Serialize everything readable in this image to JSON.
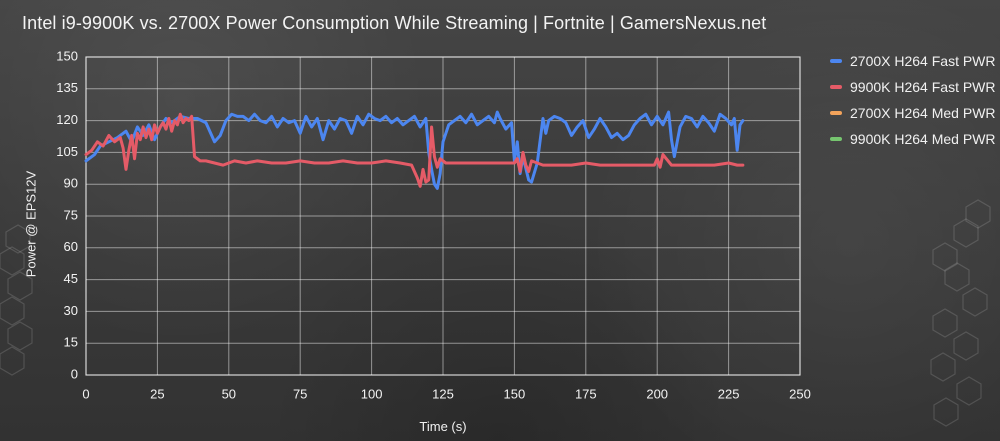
{
  "chart_data": {
    "type": "line",
    "title": "Intel i9-9900K vs. 2700X Power Consumption While Streaming | Fortnite | GamersNexus.net",
    "xlabel": "Time (s)",
    "ylabel": "Power @ EPS12V",
    "x_ticks": [
      0,
      25,
      50,
      75,
      100,
      125,
      150,
      175,
      200,
      225,
      250
    ],
    "y_ticks": [
      0,
      15,
      30,
      45,
      60,
      75,
      90,
      105,
      120,
      135,
      150
    ],
    "xlim": [
      0,
      250
    ],
    "ylim": [
      0,
      150
    ],
    "series": [
      {
        "name": "2700X H264 Fast PWR",
        "color": "#4c86f0",
        "x": [
          0,
          3,
          5,
          8,
          11,
          14,
          16,
          18,
          20,
          22,
          24,
          26,
          28,
          30,
          33,
          36,
          39,
          42,
          45,
          47,
          49,
          51,
          53,
          55,
          57,
          59,
          61,
          63,
          65,
          67,
          69,
          71,
          73,
          75,
          77,
          79,
          81,
          83,
          85,
          87,
          89,
          91,
          93,
          95,
          97,
          99,
          101,
          103,
          105,
          107,
          109,
          111,
          113,
          115,
          117,
          119,
          120,
          121,
          122,
          123,
          124,
          125,
          127,
          129,
          131,
          133,
          135,
          137,
          139,
          141,
          143,
          144,
          145,
          147,
          149,
          150,
          151,
          152,
          153,
          155,
          156,
          158,
          160,
          161,
          162,
          164,
          166,
          168,
          170,
          172,
          174,
          176,
          178,
          180,
          182,
          184,
          186,
          188,
          190,
          192,
          194,
          196,
          198,
          200,
          202,
          204,
          205,
          206,
          208,
          210,
          212,
          214,
          216,
          218,
          220,
          222,
          224,
          226,
          227,
          228,
          229,
          230
        ],
        "values": [
          101,
          104,
          108,
          110,
          112,
          115,
          110,
          117,
          113,
          118,
          111,
          117,
          121,
          119,
          122,
          121,
          121,
          119,
          110,
          113,
          120,
          123,
          122,
          122,
          120,
          123,
          120,
          119,
          122,
          117,
          121,
          119,
          120,
          114,
          122,
          117,
          121,
          111,
          120,
          116,
          121,
          120,
          114,
          122,
          118,
          123,
          121,
          120,
          122,
          119,
          121,
          118,
          120,
          122,
          117,
          121,
          105,
          97,
          90,
          88,
          95,
          110,
          118,
          120,
          122,
          119,
          123,
          118,
          120,
          122,
          119,
          124,
          121,
          116,
          119,
          101,
          110,
          95,
          103,
          92,
          91,
          100,
          121,
          114,
          120,
          122,
          121,
          119,
          113,
          117,
          120,
          112,
          116,
          121,
          117,
          112,
          114,
          111,
          113,
          118,
          121,
          123,
          118,
          122,
          118,
          124,
          111,
          103,
          117,
          122,
          121,
          117,
          122,
          119,
          115,
          123,
          121,
          118,
          121,
          106,
          118,
          120
        ]
      },
      {
        "name": "9900K H264 Fast PWR",
        "color": "#e55b67",
        "x": [
          0,
          2,
          4,
          6,
          8,
          10,
          12,
          13,
          14,
          15,
          16,
          17,
          18,
          19,
          20,
          21,
          22,
          23,
          24,
          25,
          26,
          27,
          28,
          29,
          30,
          31,
          32,
          33,
          34,
          35,
          36,
          37,
          38,
          40,
          42,
          45,
          48,
          52,
          56,
          60,
          65,
          70,
          75,
          80,
          85,
          90,
          95,
          100,
          105,
          110,
          114,
          116,
          117,
          118,
          119,
          120,
          121,
          122,
          123,
          124,
          125,
          126,
          130,
          135,
          140,
          145,
          150,
          151,
          152,
          153,
          154,
          155,
          156,
          158,
          160,
          165,
          170,
          175,
          180,
          185,
          190,
          195,
          199,
          200,
          201,
          202,
          205,
          210,
          215,
          220,
          225,
          228,
          230
        ],
        "values": [
          104,
          106,
          110,
          108,
          113,
          110,
          112,
          107,
          97,
          106,
          113,
          102,
          114,
          111,
          117,
          112,
          116,
          111,
          118,
          114,
          117,
          119,
          116,
          121,
          115,
          120,
          118,
          123,
          119,
          121,
          120,
          122,
          103,
          101,
          101,
          100,
          99,
          101,
          100,
          101,
          100,
          100,
          101,
          100,
          100,
          101,
          100,
          100,
          101,
          100,
          99,
          93,
          89,
          97,
          91,
          92,
          117,
          103,
          98,
          102,
          101,
          100,
          100,
          100,
          100,
          100,
          100,
          102,
          96,
          105,
          99,
          96,
          101,
          100,
          99,
          99,
          99,
          100,
          99,
          99,
          99,
          99,
          99,
          102,
          98,
          104,
          99,
          99,
          99,
          99,
          100,
          99,
          99
        ]
      },
      {
        "name": "2700X H264 Med PWR",
        "color": "#f3a35b",
        "x": [],
        "values": []
      },
      {
        "name": "9900K H264 Med PWR",
        "color": "#76c56f",
        "x": [],
        "values": []
      }
    ]
  }
}
